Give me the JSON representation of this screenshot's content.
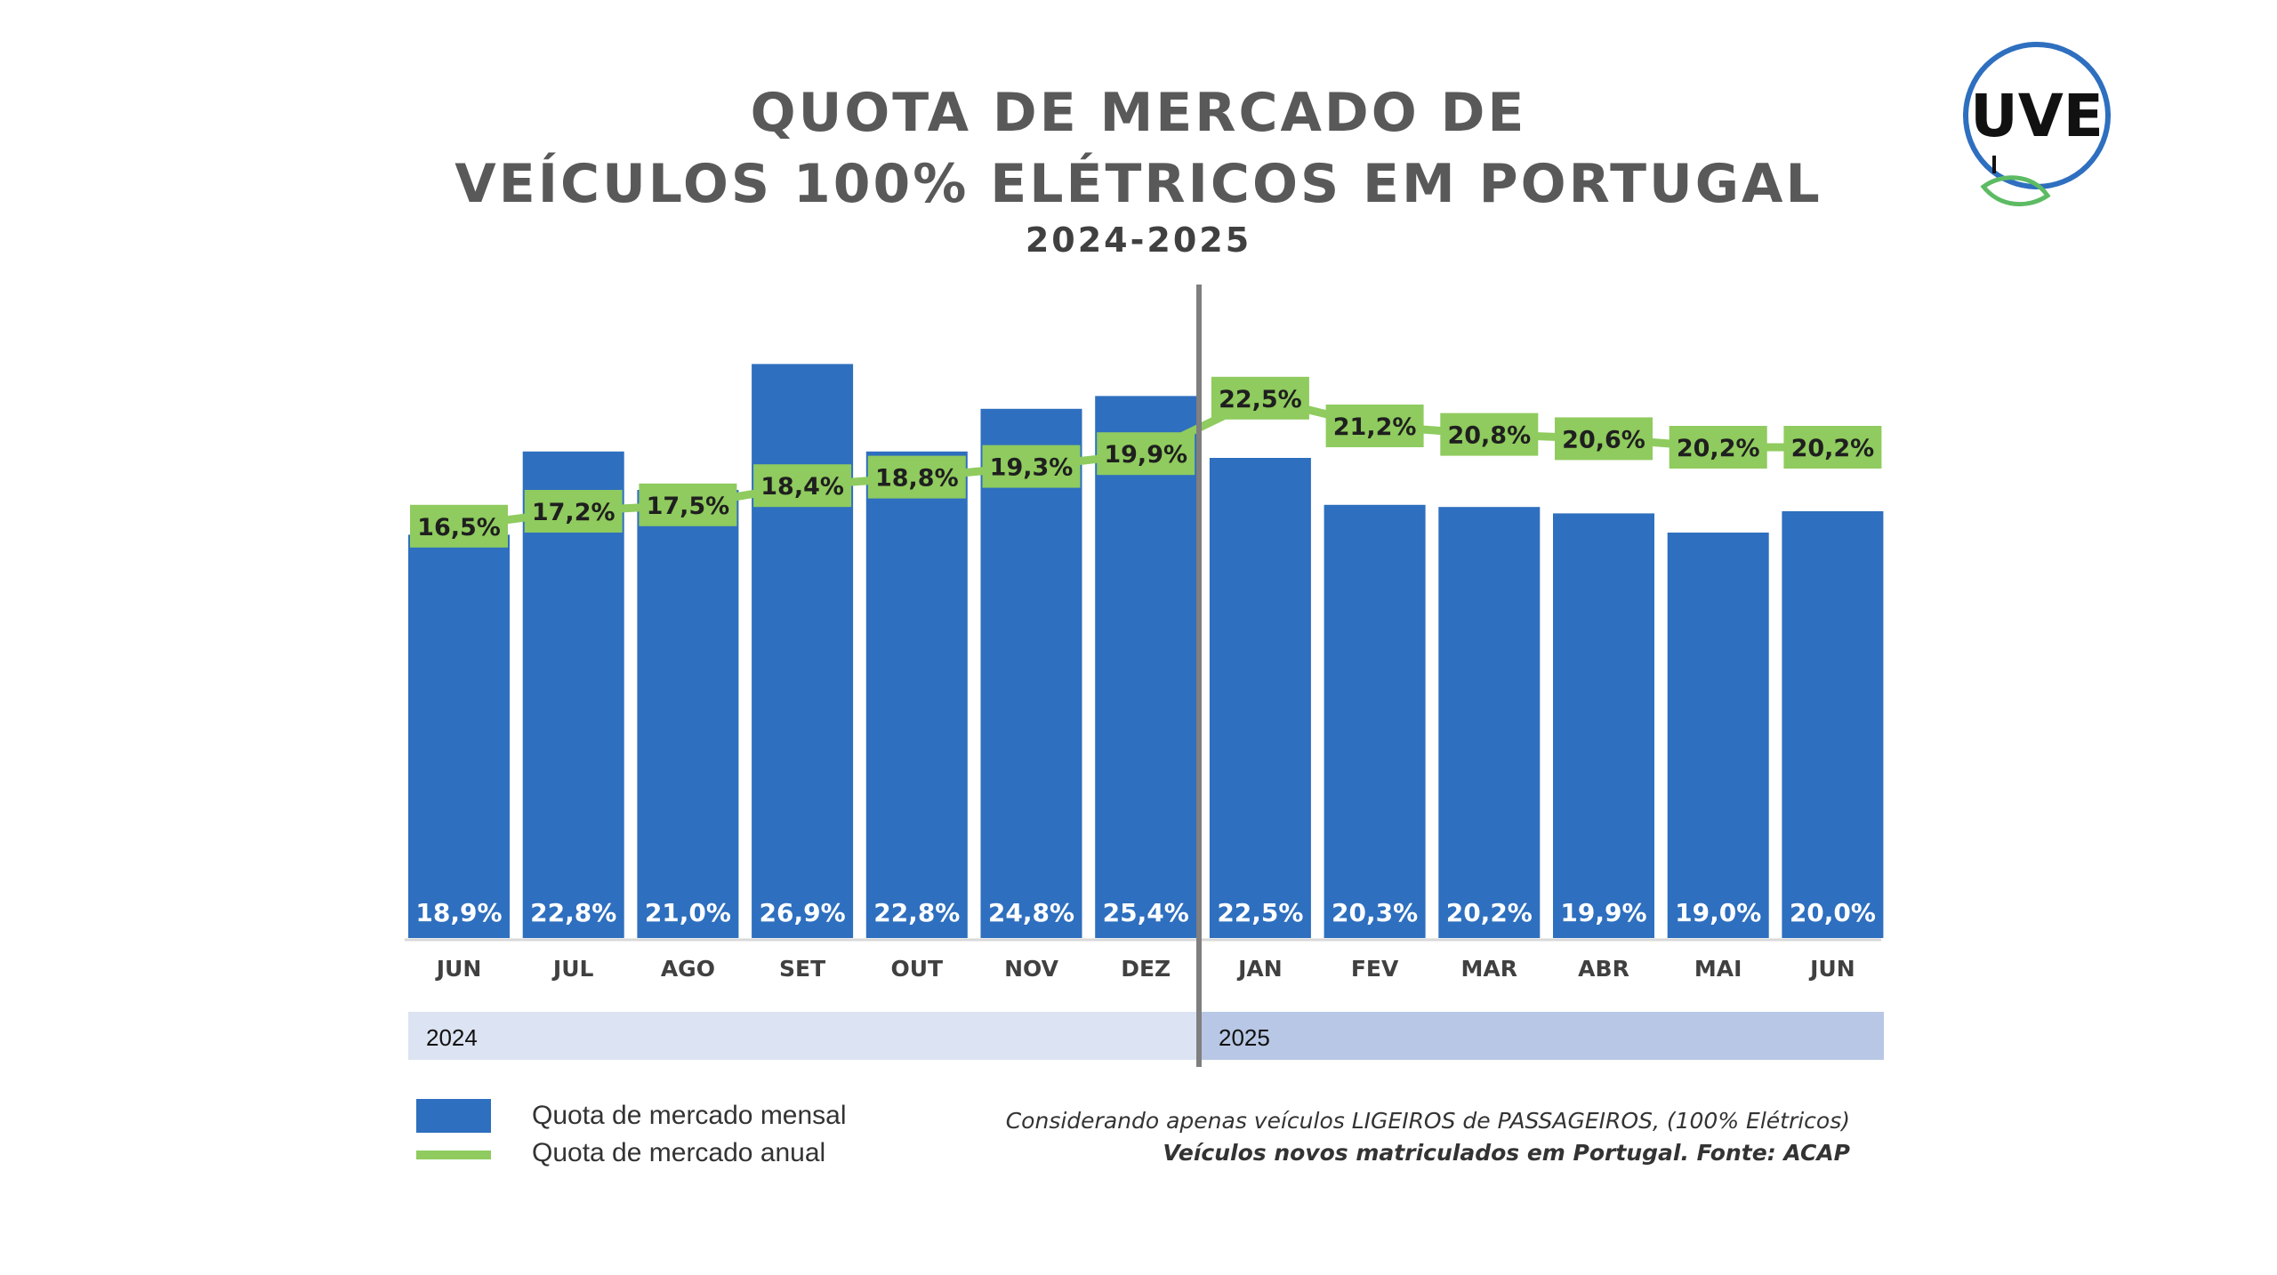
{
  "title": {
    "line1": "QUOTA DE MERCADO DE",
    "line2": "VEÍCULOS 100% ELÉTRICOS EM PORTUGAL",
    "period": "2024-2025"
  },
  "logo": {
    "text": "UVE",
    "icon": "plug-leaf-logo"
  },
  "colors": {
    "bar": "#2E6FBF",
    "line": "#8FCB5E",
    "year2024_band": "#DCE3F2",
    "year2025_band": "#B8C7E5",
    "divider": "#7F7F7F"
  },
  "chart_data": {
    "type": "bar",
    "categories": [
      "JUN",
      "JUL",
      "AGO",
      "SET",
      "OUT",
      "NOV",
      "DEZ",
      "JAN",
      "FEV",
      "MAR",
      "ABR",
      "MAI",
      "JUN"
    ],
    "years": [
      {
        "label": "2024",
        "from": 0,
        "to": 6
      },
      {
        "label": "2025",
        "from": 7,
        "to": 12
      }
    ],
    "series": [
      {
        "name": "Quota de mercado mensal",
        "kind": "bar",
        "values": [
          18.9,
          22.8,
          21.0,
          26.9,
          22.8,
          24.8,
          25.4,
          22.5,
          20.3,
          20.2,
          19.9,
          19.0,
          20.0
        ],
        "labels": [
          "18,9%",
          "22,8%",
          "21,0%",
          "26,9%",
          "22,8%",
          "24,8%",
          "25,4%",
          "22,5%",
          "20,3%",
          "20,2%",
          "19,9%",
          "19,0%",
          "20,0%"
        ]
      },
      {
        "name": "Quota de mercado anual",
        "kind": "line",
        "values": [
          16.5,
          17.2,
          17.5,
          18.4,
          18.8,
          19.3,
          19.9,
          22.5,
          21.2,
          20.8,
          20.6,
          20.2,
          20.2
        ],
        "labels": [
          "16,5%",
          "17,2%",
          "17,5%",
          "18,4%",
          "18,8%",
          "19,3%",
          "19,9%",
          "22,5%",
          "21,2%",
          "20,8%",
          "20,6%",
          "20,2%",
          "20,2%"
        ]
      }
    ],
    "ylim": [
      0,
      30
    ],
    "grid": false,
    "legend_position": "bottom-left"
  },
  "notes": {
    "line1": "Considerando apenas veículos LIGEIROS de PASSAGEIROS, (100% Elétricos)",
    "line2": "Veículos novos matriculados em Portugal. Fonte: ACAP"
  }
}
